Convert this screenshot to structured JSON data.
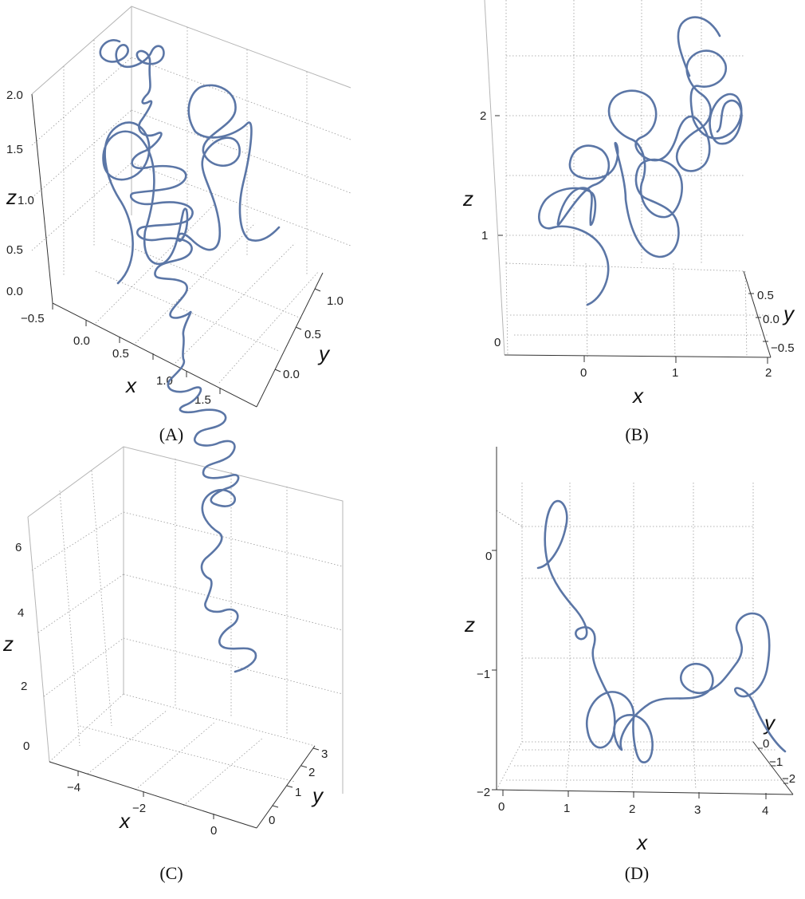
{
  "panels": [
    {
      "id": "A",
      "caption": "(A)",
      "chart_data": {
        "type": "line",
        "projection": "3d-parametric-curve",
        "series": [
          {
            "color": "#5b76a6"
          }
        ],
        "xlabel": "x",
        "ylabel": "y",
        "zlabel": "z",
        "x_ticks": [
          "0.0",
          "0.5",
          "1.0",
          "1.5"
        ],
        "y_ticks": [
          "0.0",
          "0.5",
          "1.0"
        ],
        "z_ticks": [
          "0.0",
          "0.5",
          "1.0",
          "1.5",
          "2.0"
        ],
        "extra_ticks": [
          "−0.5"
        ],
        "xlim": [
          -0.5,
          1.8
        ],
        "ylim": [
          -0.3,
          1.2
        ],
        "zlim": [
          0,
          2
        ],
        "grid": true
      }
    },
    {
      "id": "B",
      "caption": "(B)",
      "chart_data": {
        "type": "line",
        "projection": "3d-parametric-curve",
        "series": [
          {
            "color": "#5b76a6"
          }
        ],
        "xlabel": "x",
        "ylabel": "y",
        "zlabel": "z",
        "x_ticks": [
          "0",
          "1",
          "2"
        ],
        "y_ticks": [
          "0.5",
          "0.0",
          "−0.5"
        ],
        "z_ticks": [
          "0",
          "1",
          "2"
        ],
        "xlim": [
          -0.8,
          2
        ],
        "ylim": [
          -0.6,
          0.6
        ],
        "zlim": [
          0,
          2.4
        ],
        "grid": true
      }
    },
    {
      "id": "C",
      "caption": "(C)",
      "chart_data": {
        "type": "line",
        "projection": "3d-parametric-curve",
        "series": [
          {
            "color": "#5b76a6"
          }
        ],
        "xlabel": "x",
        "ylabel": "y",
        "zlabel": "z",
        "x_ticks": [
          "−4",
          "−2",
          "0"
        ],
        "y_ticks": [
          "0",
          "1",
          "2",
          "3"
        ],
        "z_ticks": [
          "0",
          "2",
          "4",
          "6"
        ],
        "xlim": [
          -5,
          1
        ],
        "ylim": [
          -0.3,
          3.3
        ],
        "zlim": [
          -0.8,
          7
        ],
        "grid": true
      }
    },
    {
      "id": "D",
      "caption": "(D)",
      "chart_data": {
        "type": "line",
        "projection": "3d-parametric-curve",
        "series": [
          {
            "color": "#5b76a6"
          }
        ],
        "xlabel": "x",
        "ylabel": "y",
        "zlabel": "z",
        "x_ticks": [
          "0",
          "1",
          "2",
          "3",
          "4"
        ],
        "y_ticks": [
          "0",
          "−1",
          "−2"
        ],
        "z_ticks": [
          "0",
          "−1",
          "−2"
        ],
        "xlim": [
          -0.2,
          4.4
        ],
        "ylim": [
          -2.5,
          0.2
        ],
        "zlim": [
          -2,
          0.8
        ],
        "grid": true
      }
    }
  ]
}
